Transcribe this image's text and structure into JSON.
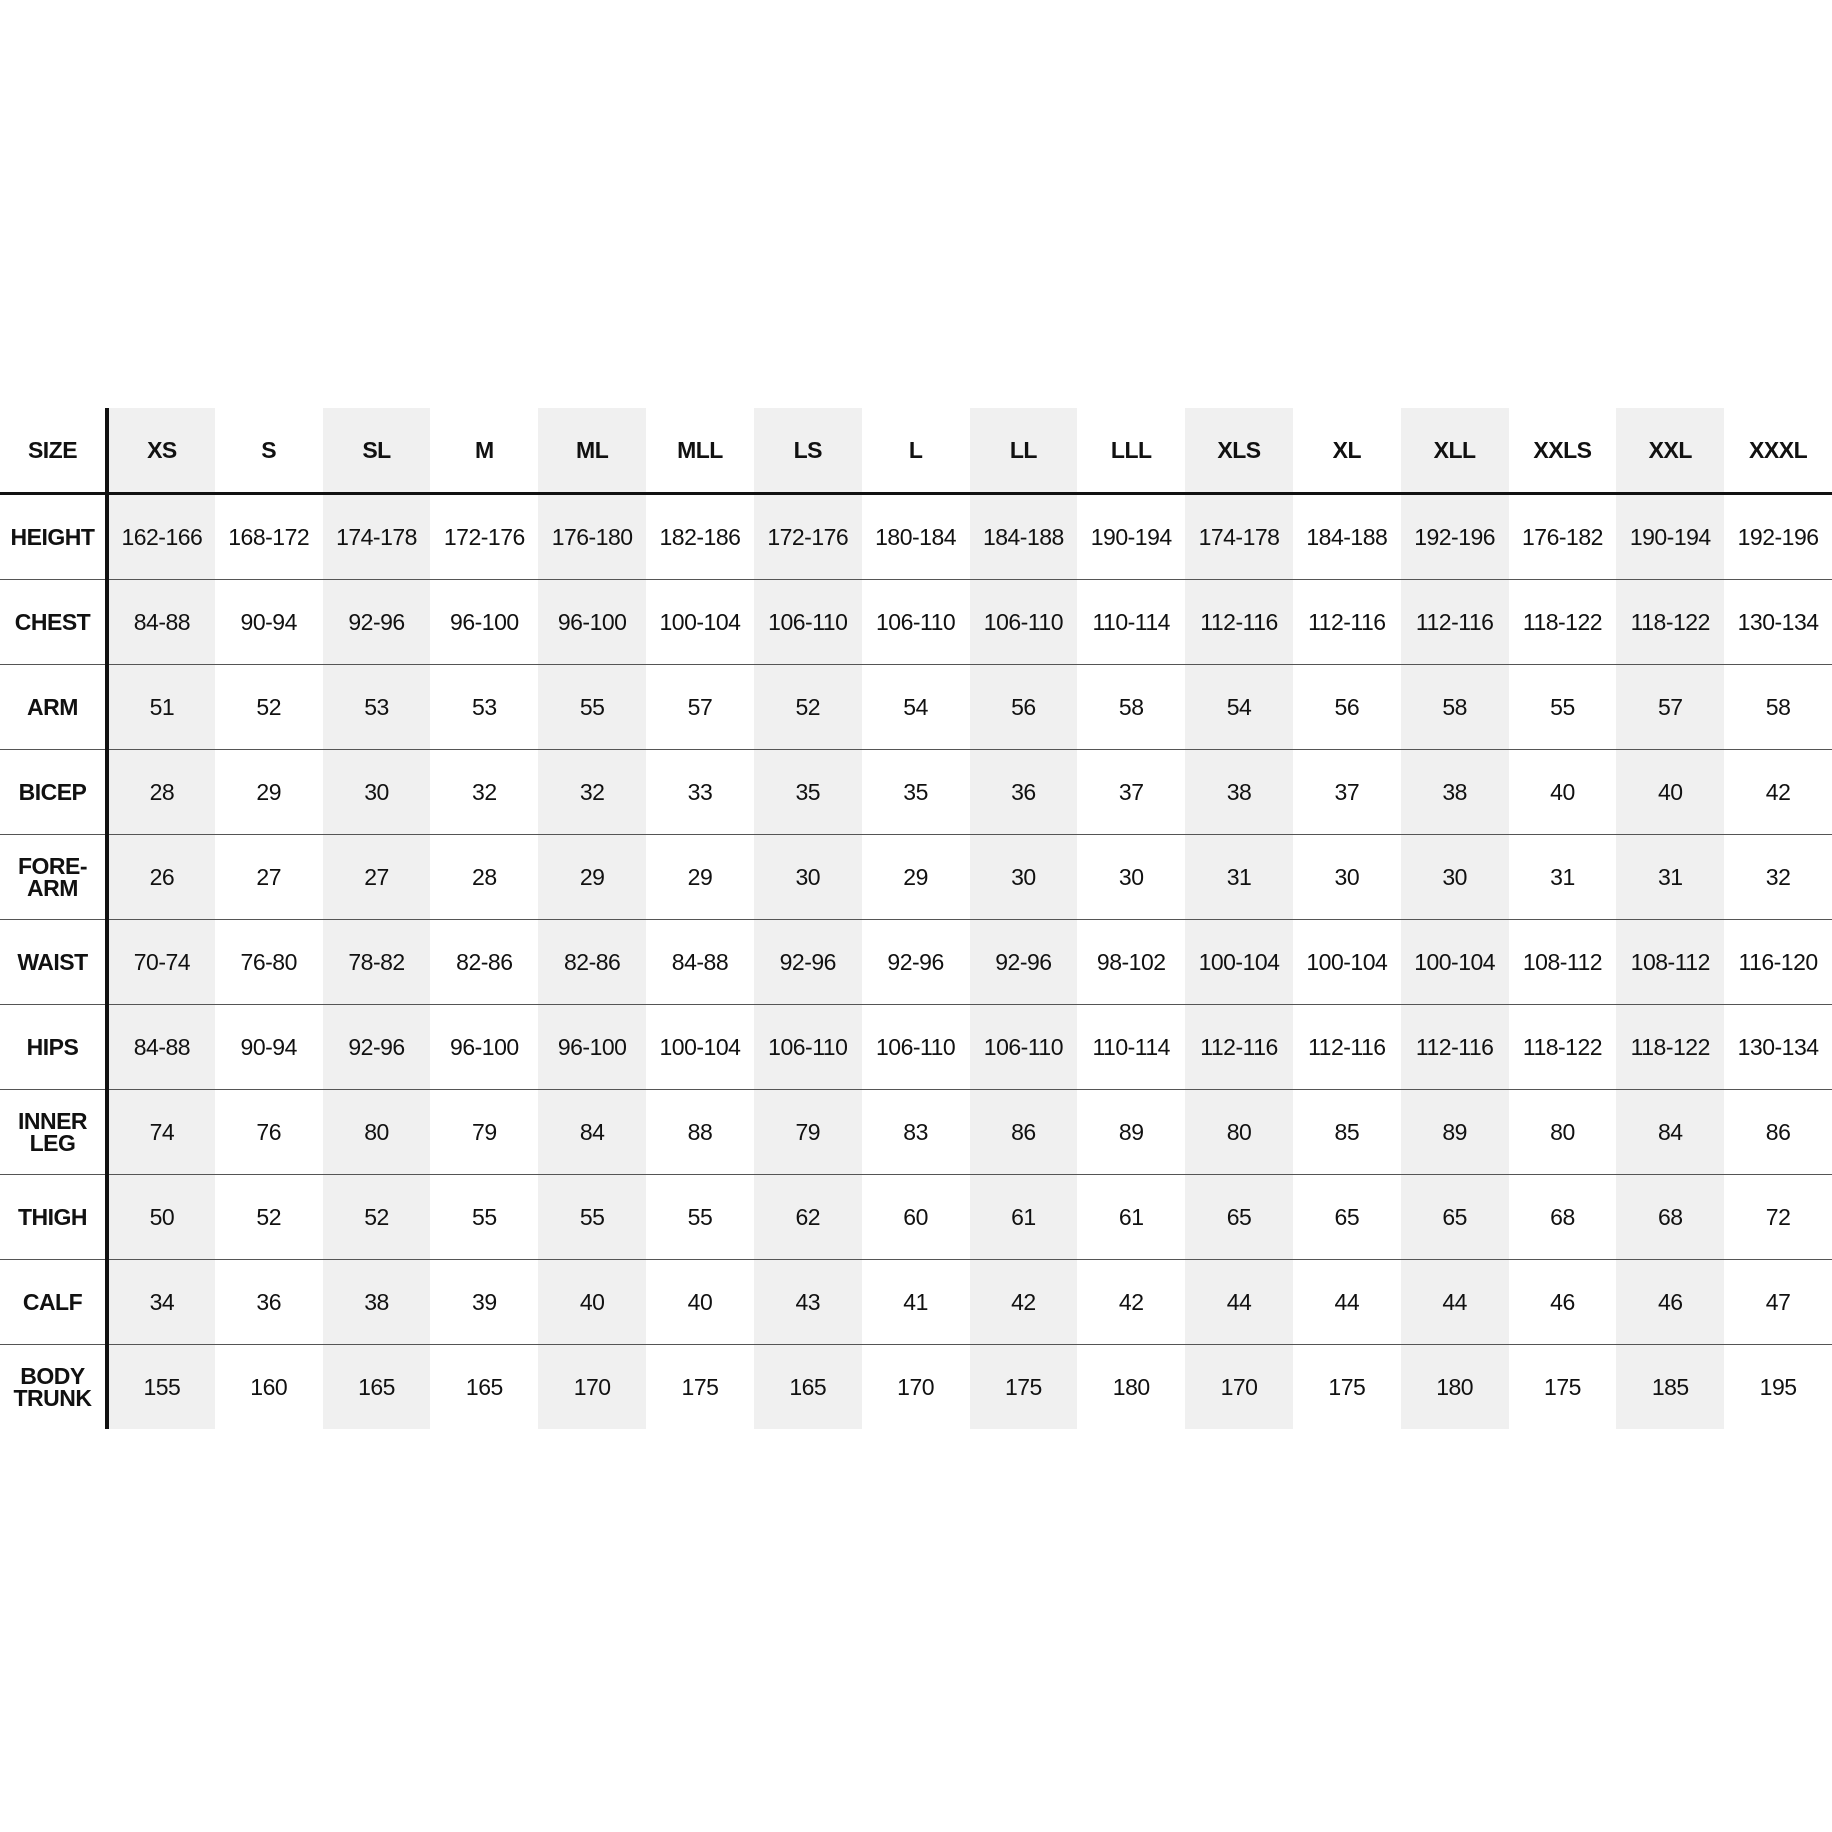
{
  "table": {
    "corner_label": "SIZE",
    "sizes": [
      "XS",
      "S",
      "SL",
      "M",
      "ML",
      "MLL",
      "LS",
      "L",
      "LL",
      "LLL",
      "XLS",
      "XL",
      "XLL",
      "XXLS",
      "XXL",
      "XXXL"
    ],
    "rows": [
      {
        "label": "HEIGHT",
        "values": [
          "162-166",
          "168-172",
          "174-178",
          "172-176",
          "176-180",
          "182-186",
          "172-176",
          "180-184",
          "184-188",
          "190-194",
          "174-178",
          "184-188",
          "192-196",
          "176-182",
          "190-194",
          "192-196"
        ]
      },
      {
        "label": "CHEST",
        "values": [
          "84-88",
          "90-94",
          "92-96",
          "96-100",
          "96-100",
          "100-104",
          "106-110",
          "106-110",
          "106-110",
          "110-114",
          "112-116",
          "112-116",
          "112-116",
          "118-122",
          "118-122",
          "130-134"
        ]
      },
      {
        "label": "ARM",
        "values": [
          "51",
          "52",
          "53",
          "53",
          "55",
          "57",
          "52",
          "54",
          "56",
          "58",
          "54",
          "56",
          "58",
          "55",
          "57",
          "58"
        ]
      },
      {
        "label": "BICEP",
        "values": [
          "28",
          "29",
          "30",
          "32",
          "32",
          "33",
          "35",
          "35",
          "36",
          "37",
          "38",
          "37",
          "38",
          "40",
          "40",
          "42"
        ]
      },
      {
        "label": "FORE-\nARM",
        "values": [
          "26",
          "27",
          "27",
          "28",
          "29",
          "29",
          "30",
          "29",
          "30",
          "30",
          "31",
          "30",
          "30",
          "31",
          "31",
          "32"
        ]
      },
      {
        "label": "WAIST",
        "values": [
          "70-74",
          "76-80",
          "78-82",
          "82-86",
          "82-86",
          "84-88",
          "92-96",
          "92-96",
          "92-96",
          "98-102",
          "100-104",
          "100-104",
          "100-104",
          "108-112",
          "108-112",
          "116-120"
        ]
      },
      {
        "label": "HIPS",
        "values": [
          "84-88",
          "90-94",
          "92-96",
          "96-100",
          "96-100",
          "100-104",
          "106-110",
          "106-110",
          "106-110",
          "110-114",
          "112-116",
          "112-116",
          "112-116",
          "118-122",
          "118-122",
          "130-134"
        ]
      },
      {
        "label": "INNER\nLEG",
        "values": [
          "74",
          "76",
          "80",
          "79",
          "84",
          "88",
          "79",
          "83",
          "86",
          "89",
          "80",
          "85",
          "89",
          "80",
          "84",
          "86"
        ]
      },
      {
        "label": "THIGH",
        "values": [
          "50",
          "52",
          "52",
          "55",
          "55",
          "55",
          "62",
          "60",
          "61",
          "61",
          "65",
          "65",
          "65",
          "68",
          "68",
          "72"
        ]
      },
      {
        "label": "CALF",
        "values": [
          "34",
          "36",
          "38",
          "39",
          "40",
          "40",
          "43",
          "41",
          "42",
          "42",
          "44",
          "44",
          "44",
          "46",
          "46",
          "47"
        ]
      },
      {
        "label": "BODY\nTRUNK",
        "values": [
          "155",
          "160",
          "165",
          "165",
          "170",
          "175",
          "165",
          "170",
          "175",
          "180",
          "170",
          "175",
          "180",
          "175",
          "185",
          "195"
        ]
      }
    ]
  },
  "colors": {
    "shade": "#f0f0f0",
    "rule": "#111111"
  }
}
